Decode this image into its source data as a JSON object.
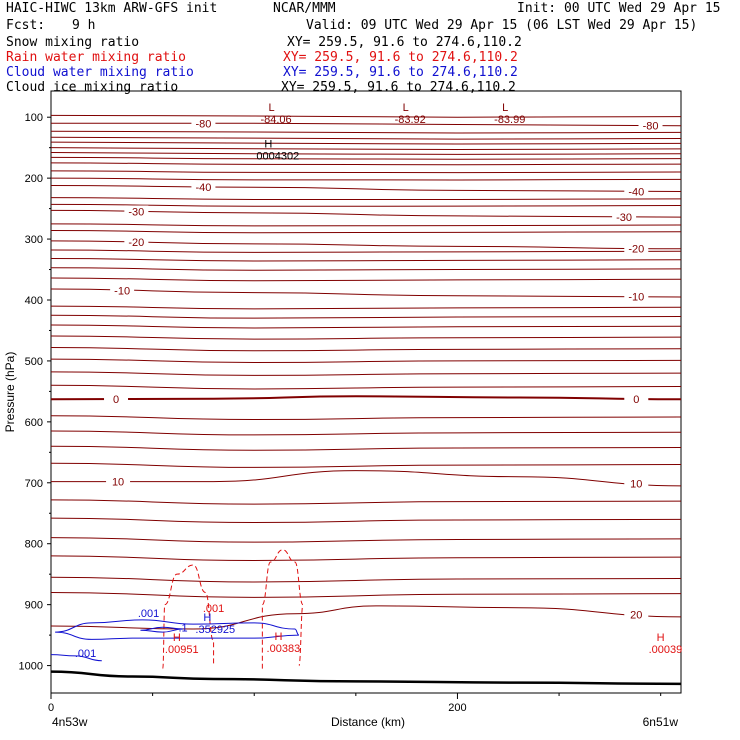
{
  "header": {
    "title_left": "HAIC-HIWC 13km ARW-GFS init",
    "org": "NCAR/MMM",
    "init": "Init: 00 UTC Wed 29 Apr 15",
    "fcst_label": "Fcst:",
    "fcst_value": "9 h",
    "valid": "Valid: 09 UTC Wed 29 Apr 15 (06 LST Wed 29 Apr 15)"
  },
  "fields": [
    {
      "name": "Snow mixing ratio",
      "xy": "XY= 259.5, 91.6 to 274.6,110.2",
      "color": "#000000"
    },
    {
      "name": "Rain water mixing ratio",
      "xy": "XY= 259.5, 91.6 to 274.6,110.2",
      "color": "#e01010"
    },
    {
      "name": "Cloud water mixing ratio",
      "xy": "XY= 259.5, 91.6 to 274.6,110.2",
      "color": "#1010d0"
    },
    {
      "name": "Cloud ice mixing ratio",
      "xy": "XY= 259.5, 91.6 to 274.6,110.2",
      "color": "#000000"
    }
  ],
  "chart_data": {
    "type": "line",
    "ylabel": "Pressure (hPa)",
    "xlabel": "Distance (km)",
    "x_endpoints": [
      "4n53w",
      "6n51w"
    ],
    "xlim": [
      0,
      310
    ],
    "ylim": [
      1045,
      57
    ],
    "x_ticks": [
      0,
      200
    ],
    "y_ticks": [
      100,
      200,
      300,
      400,
      500,
      600,
      700,
      800,
      900,
      1000
    ],
    "temperature_contours": [
      {
        "label": "-80",
        "x": [
          0,
          100,
          200,
          310
        ],
        "p": [
          110,
          110,
          112,
          114
        ],
        "labels_at": [
          [
            75,
            "-80"
          ],
          [
            295,
            "-80"
          ]
        ]
      },
      {
        "label": "-40",
        "x": [
          0,
          100,
          200,
          310
        ],
        "p": [
          212,
          215,
          220,
          222
        ],
        "labels_at": [
          [
            75,
            "-40"
          ],
          [
            288,
            "-40"
          ]
        ]
      },
      {
        "label": "-30",
        "x": [
          0,
          100,
          200,
          310
        ],
        "p": [
          253,
          257,
          262,
          264
        ],
        "labels_at": [
          [
            42,
            "-30"
          ],
          [
            282,
            "-30"
          ]
        ]
      },
      {
        "label": "-20",
        "x": [
          0,
          100,
          200,
          310
        ],
        "p": [
          303,
          308,
          312,
          316
        ],
        "labels_at": [
          [
            42,
            "-20"
          ],
          [
            288,
            "-20"
          ]
        ]
      },
      {
        "label": "-10",
        "x": [
          0,
          100,
          200,
          310
        ],
        "p": [
          382,
          388,
          393,
          395
        ],
        "labels_at": [
          [
            35,
            "-10"
          ],
          [
            288,
            "-10"
          ]
        ]
      },
      {
        "label": "0",
        "x": [
          0,
          80,
          150,
          230,
          310
        ],
        "p": [
          563,
          562,
          558,
          560,
          563
        ],
        "labels_at": [
          [
            32,
            "0"
          ],
          [
            288,
            "0"
          ]
        ]
      },
      {
        "label": "10",
        "x": [
          0,
          80,
          150,
          230,
          310
        ],
        "p": [
          698,
          698,
          680,
          690,
          705
        ],
        "labels_at": [
          [
            33,
            "10"
          ],
          [
            288,
            "10"
          ]
        ]
      },
      {
        "label": "20",
        "x": [
          0,
          70,
          120,
          160,
          230,
          310
        ],
        "p": [
          935,
          940,
          915,
          902,
          905,
          920
        ],
        "labels_at": [
          [
            288,
            "20"
          ]
        ]
      }
    ],
    "extrema": [
      {
        "type": "L",
        "x": 107,
        "p": 90,
        "value": "-84.06"
      },
      {
        "type": "L",
        "x": 173,
        "p": 90,
        "value": "-83.92"
      },
      {
        "type": "L",
        "x": 222,
        "p": 90,
        "value": "-83.99"
      },
      {
        "type": "H",
        "x": 105,
        "p": 150,
        "value": "0004302"
      },
      {
        "type": "H",
        "x": 60,
        "p": 960,
        "value": ".00951"
      },
      {
        "type": "H",
        "x": 110,
        "p": 958,
        "value": ".00383"
      },
      {
        "type": "H",
        "x": 298,
        "p": 960,
        "value": ".00039"
      },
      {
        "type": "H",
        "x": 75,
        "p": 927,
        "value": ".352925"
      }
    ],
    "rain_contour_label": ".001",
    "cloud_water_contour_labels": [
      ".001",
      ".001"
    ],
    "cloud_water_mid_label": ".1"
  }
}
